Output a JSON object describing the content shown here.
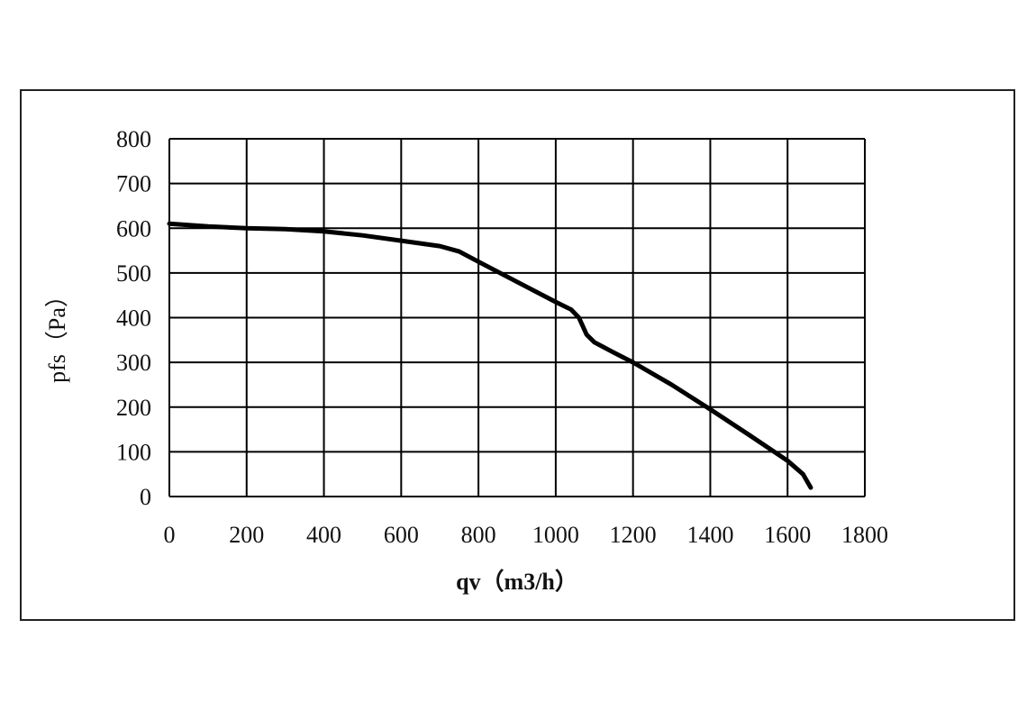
{
  "chart_data": {
    "type": "line",
    "title": "",
    "xlabel": "qv（m3/h）",
    "ylabel": "pfs（Pa）",
    "xlim": [
      0,
      1800
    ],
    "ylim": [
      0,
      800
    ],
    "x_ticks": [
      "0",
      "200",
      "400",
      "600",
      "800",
      "1000",
      "1200",
      "1400",
      "1600",
      "1800"
    ],
    "y_ticks": [
      "0",
      "100",
      "200",
      "300",
      "400",
      "500",
      "600",
      "700",
      "800"
    ],
    "grid": true,
    "series": [
      {
        "color": "#000000",
        "x": [
          0,
          100,
          200,
          300,
          400,
          500,
          600,
          700,
          750,
          800,
          900,
          1000,
          1040,
          1060,
          1080,
          1100,
          1150,
          1200,
          1300,
          1400,
          1500,
          1600,
          1640,
          1660
        ],
        "y": [
          610,
          604,
          600,
          598,
          593,
          584,
          572,
          560,
          548,
          525,
          480,
          435,
          418,
          400,
          362,
          345,
          322,
          300,
          250,
          195,
          138,
          80,
          50,
          20
        ]
      }
    ]
  }
}
